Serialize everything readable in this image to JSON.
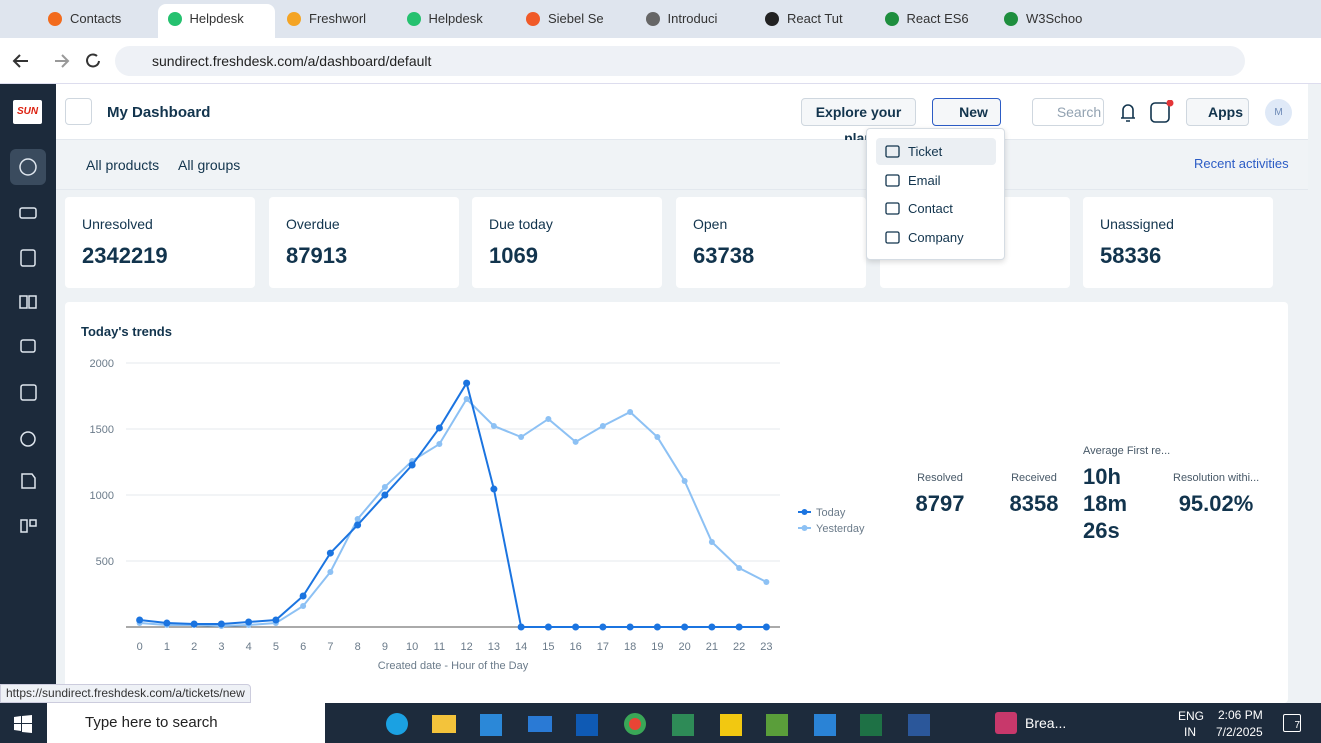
{
  "browser": {
    "tabs": [
      "Contacts",
      "Helpdesk",
      "Freshworl",
      "Helpdesk",
      "Siebel Se",
      "Introduci",
      "React Tut",
      "React ES6",
      "W3Schoo"
    ],
    "url": "sundirect.freshdesk.com/a/dashboard/default",
    "status_url": "https://sundirect.freshdesk.com/a/tickets/new"
  },
  "header": {
    "logo": "SUN",
    "title": "My Dashboard",
    "explore": "Explore your plan",
    "new": "New",
    "search": "Search",
    "apps": "Apps",
    "avatar": "M"
  },
  "new_menu": [
    "Ticket",
    "Email",
    "Contact",
    "Company"
  ],
  "filters": {
    "products": "All products",
    "groups": "All groups",
    "recent": "Recent activities"
  },
  "cards": [
    {
      "label": "Unresolved",
      "value": 2342219
    },
    {
      "label": "Overdue",
      "value": 87913
    },
    {
      "label": "Due today",
      "value": 1069
    },
    {
      "label": "Open",
      "value": 63738
    },
    {
      "label": "Unassigned",
      "value": 58336
    }
  ],
  "chart_data": {
    "type": "line",
    "title": "Today's trends",
    "x_label": "Created date - Hour of the Day",
    "x": [
      0,
      1,
      2,
      3,
      4,
      5,
      6,
      7,
      8,
      9,
      10,
      11,
      12,
      13,
      14,
      15,
      16,
      17,
      18,
      19,
      20,
      21,
      22,
      23
    ],
    "xlim": [
      -0.5,
      23.5
    ],
    "ylim": [
      0,
      2000
    ],
    "yticks": [
      500,
      1000,
      1500,
      2000
    ],
    "grid": true,
    "series": [
      {
        "name": "Today",
        "color": "#1b74e0",
        "values": [
          53,
          30,
          23,
          23,
          38,
          53,
          235,
          560,
          773,
          1000,
          1227,
          1508,
          1848,
          1045,
          0,
          0,
          0,
          0,
          0,
          0,
          0,
          0,
          0,
          0
        ]
      },
      {
        "name": "Yesterday",
        "color": "#8dc1f4",
        "values": [
          30,
          15,
          15,
          8,
          15,
          30,
          159,
          417,
          818,
          1061,
          1258,
          1386,
          1727,
          1523,
          1439,
          1576,
          1402,
          1523,
          1629,
          1439,
          1106,
          644,
          447,
          341
        ]
      }
    ]
  },
  "stats": [
    {
      "label": "Resolved",
      "value": "8797"
    },
    {
      "label": "Received",
      "value": "8358"
    },
    {
      "label": "Average First re...",
      "value": "10h 18m 26s"
    },
    {
      "label": "Resolution withi...",
      "value": "95.02%"
    }
  ],
  "taskbar": {
    "search": "Type here to search",
    "app": "Brea...",
    "lang": "ENG",
    "region": "IN",
    "time": "2:06 PM",
    "date": "7/2/2025",
    "badge": "7"
  }
}
